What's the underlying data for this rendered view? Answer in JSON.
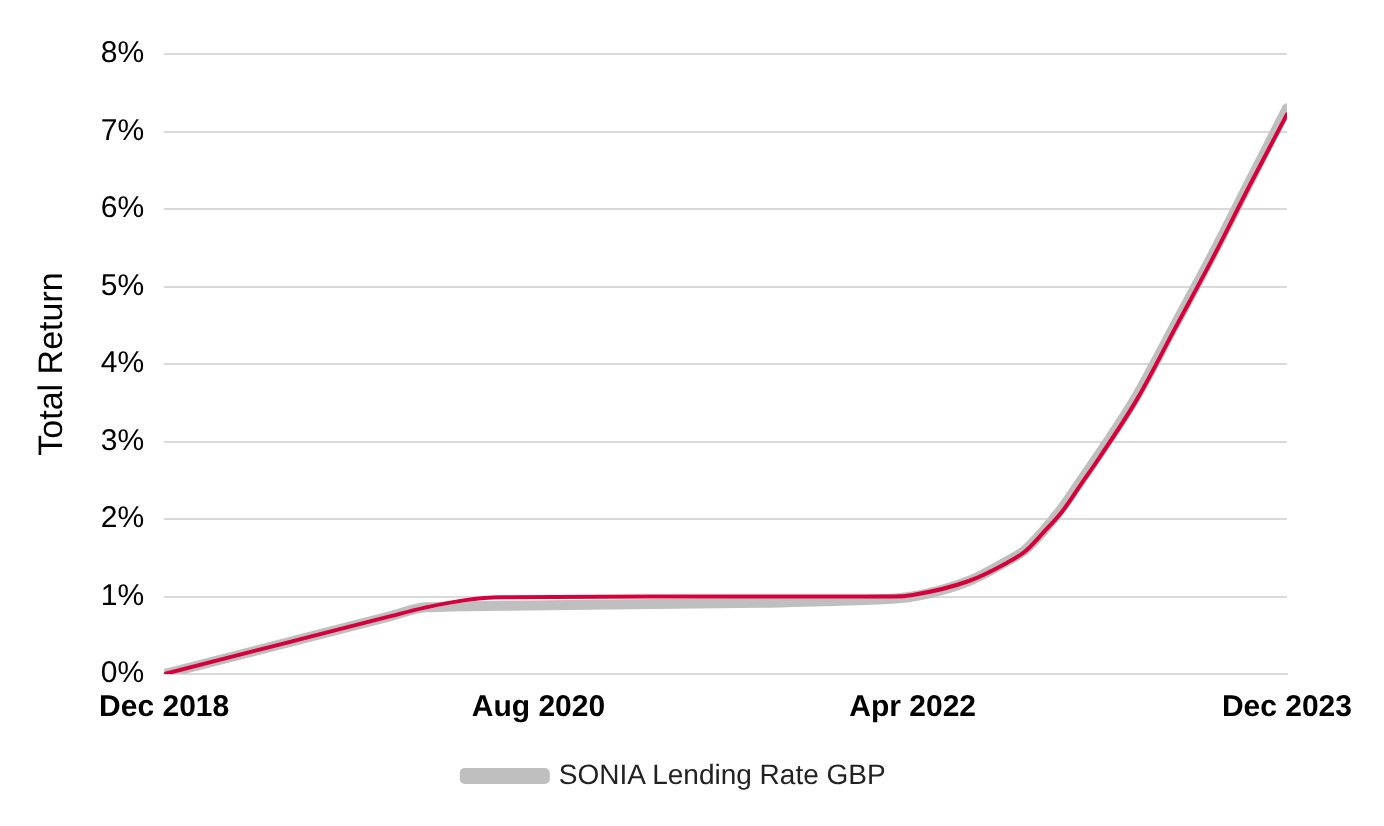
{
  "chart_data": {
    "type": "line",
    "ylabel": "Total Return",
    "xlim": [
      "2018-12",
      "2023-12"
    ],
    "xticks": [
      {
        "value": "2018-12",
        "label": "Dec 2018"
      },
      {
        "value": "2020-08",
        "label": "Aug 2020"
      },
      {
        "value": "2022-04",
        "label": "Apr 2022"
      },
      {
        "value": "2023-12",
        "label": "Dec 2023"
      }
    ],
    "ylim": [
      0,
      8
    ],
    "yticks": [
      {
        "value": 0,
        "label": "0%"
      },
      {
        "value": 1,
        "label": "1%"
      },
      {
        "value": 2,
        "label": "2%"
      },
      {
        "value": 3,
        "label": "3%"
      },
      {
        "value": 4,
        "label": "4%"
      },
      {
        "value": 5,
        "label": "5%"
      },
      {
        "value": 6,
        "label": "6%"
      },
      {
        "value": 7,
        "label": "7%"
      },
      {
        "value": 8,
        "label": "8%"
      }
    ],
    "grid": "y",
    "legend": "bottom",
    "series": [
      {
        "name": "SONIA Lending Rate GBP",
        "color": "#bfbfbf",
        "x": [
          "2018-12",
          "2019-06",
          "2019-12",
          "2020-02",
          "2020-06",
          "2021-01",
          "2021-08",
          "2022-01",
          "2022-04",
          "2022-07",
          "2022-09",
          "2022-10",
          "2022-11",
          "2022-12",
          "2023-01",
          "2023-02",
          "2023-04",
          "2023-06",
          "2023-08",
          "2023-10",
          "2023-12"
        ],
        "values": [
          0,
          0.37,
          0.74,
          0.86,
          0.88,
          0.9,
          0.92,
          0.95,
          1.0,
          1.2,
          1.45,
          1.6,
          1.85,
          2.15,
          2.5,
          2.85,
          3.6,
          4.5,
          5.4,
          6.35,
          7.3
        ]
      },
      {
        "color": "#d6003a",
        "x": [
          "2018-12",
          "2019-06",
          "2019-12",
          "2020-02",
          "2020-04",
          "2020-06",
          "2021-06",
          "2022-03",
          "2022-04",
          "2022-07",
          "2022-09",
          "2022-10",
          "2022-11",
          "2022-12",
          "2023-01",
          "2023-02",
          "2023-04",
          "2023-06",
          "2023-08",
          "2023-10",
          "2023-12"
        ],
        "values": [
          0,
          0.37,
          0.74,
          0.86,
          0.95,
          0.99,
          1.0,
          1.0,
          1.02,
          1.2,
          1.43,
          1.58,
          1.83,
          2.1,
          2.45,
          2.8,
          3.55,
          4.45,
          5.35,
          6.3,
          7.22
        ]
      }
    ]
  }
}
